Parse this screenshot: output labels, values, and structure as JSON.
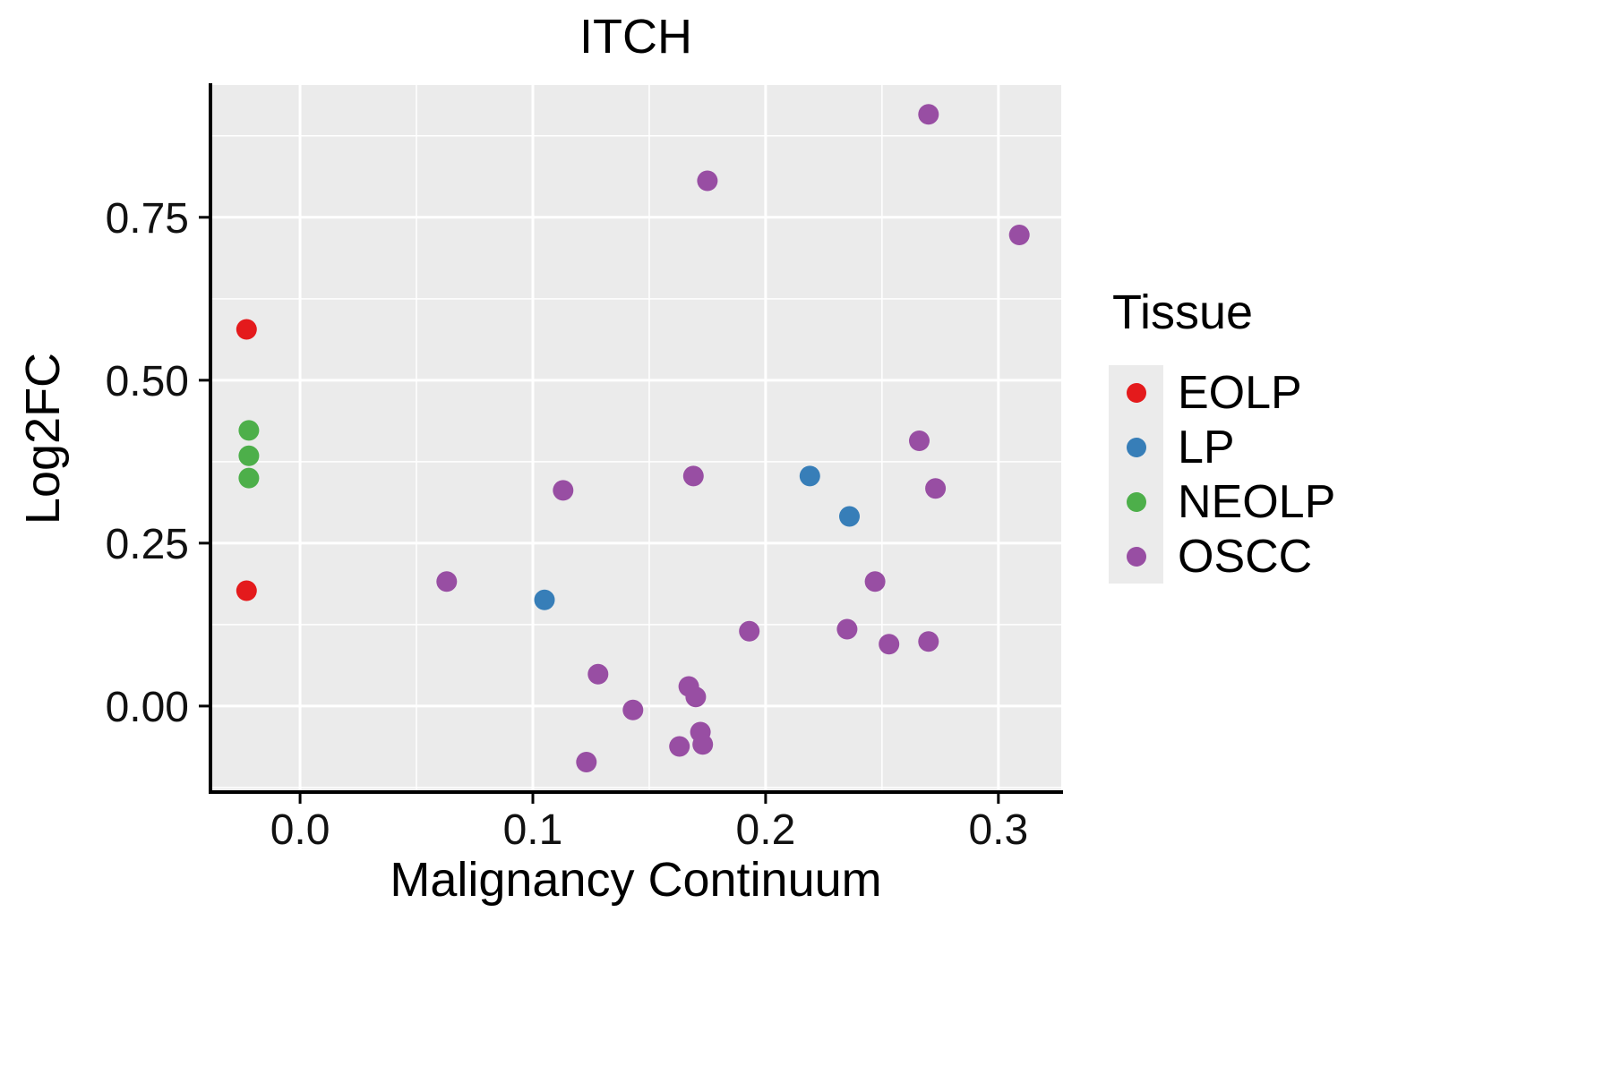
{
  "chart_data": {
    "type": "scatter",
    "title": "ITCH",
    "xlabel": "Malignancy Continuum",
    "ylabel": "Log2FC",
    "xlim": [
      -0.0385,
      0.327
    ],
    "ylim": [
      -0.132,
      0.953
    ],
    "x_ticks": [
      0.0,
      0.1,
      0.2,
      0.3
    ],
    "x_tick_labels": [
      "0.0",
      "0.1",
      "0.2",
      "0.3"
    ],
    "x_minor_ticks": [
      0.05,
      0.15,
      0.25
    ],
    "y_ticks": [
      0.0,
      0.25,
      0.5,
      0.75
    ],
    "y_tick_labels": [
      "0.00",
      "0.25",
      "0.50",
      "0.75"
    ],
    "y_minor_ticks": [
      -0.125,
      0.125,
      0.375,
      0.625,
      0.875
    ],
    "grid": true,
    "panel_bg": "#ebebeb",
    "grid_color": "#ffffff",
    "axis_color": "#000000",
    "point_radius": 11.5,
    "legend": {
      "title": "Tissue",
      "position": "right"
    },
    "series": [
      {
        "name": "EOLP",
        "color": "#e41a1c",
        "points": [
          [
            -0.023,
            0.578
          ],
          [
            -0.023,
            0.177
          ]
        ]
      },
      {
        "name": "LP",
        "color": "#377eb8",
        "points": [
          [
            0.105,
            0.163
          ],
          [
            0.219,
            0.353
          ],
          [
            0.236,
            0.291
          ]
        ]
      },
      {
        "name": "NEOLP",
        "color": "#4daf4a",
        "points": [
          [
            -0.022,
            0.423
          ],
          [
            -0.022,
            0.384
          ],
          [
            -0.022,
            0.35
          ]
        ]
      },
      {
        "name": "OSCC",
        "color": "#984ea3",
        "points": [
          [
            0.27,
            0.908
          ],
          [
            0.175,
            0.806
          ],
          [
            0.309,
            0.723
          ],
          [
            0.113,
            0.331
          ],
          [
            0.169,
            0.353
          ],
          [
            0.266,
            0.407
          ],
          [
            0.273,
            0.334
          ],
          [
            0.063,
            0.191
          ],
          [
            0.247,
            0.191
          ],
          [
            0.193,
            0.115
          ],
          [
            0.235,
            0.118
          ],
          [
            0.253,
            0.095
          ],
          [
            0.27,
            0.099
          ],
          [
            0.128,
            0.049
          ],
          [
            0.167,
            0.03
          ],
          [
            0.17,
            0.014
          ],
          [
            0.143,
            -0.006
          ],
          [
            0.172,
            -0.04
          ],
          [
            0.163,
            -0.062
          ],
          [
            0.173,
            -0.059
          ],
          [
            0.123,
            -0.086
          ]
        ]
      }
    ]
  }
}
